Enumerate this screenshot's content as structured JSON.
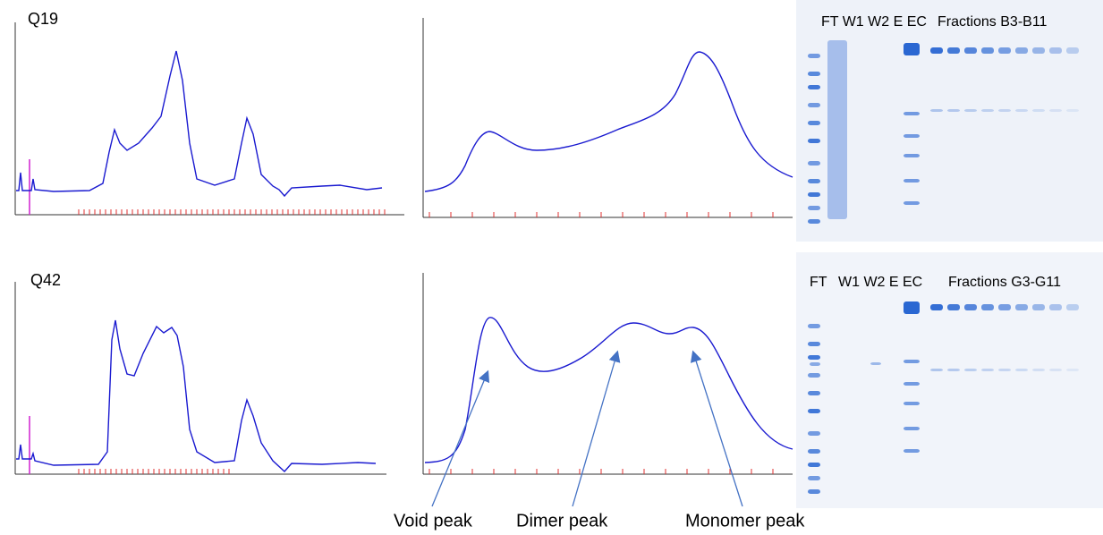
{
  "panels": [
    {
      "label": "Q19",
      "gel_lanes": [
        "FT W1 W2 E EC"
      ],
      "gel_fractions": "Fractions B3-B11"
    },
    {
      "label": "Q42",
      "gel_lanes": [
        "FT",
        "W1 W2 E EC"
      ],
      "gel_fractions": "Fractions G3-G11"
    }
  ],
  "peaks": [
    "Void peak",
    "Dimer peak",
    "Monomer peak"
  ]
}
